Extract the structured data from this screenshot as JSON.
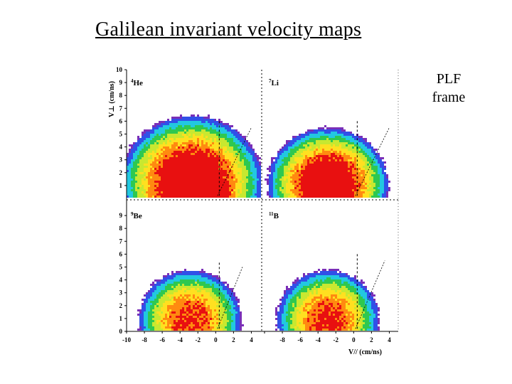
{
  "slide": {
    "title": "Galilean invariant velocity maps",
    "note": "PLF frame"
  },
  "chart_data": {
    "type": "heatmap",
    "xlabel": "V// (cm/ns)",
    "ylabel": "V⊥ (cm/ns)",
    "x_ticks": [
      -10,
      -8,
      -6,
      -4,
      -2,
      0,
      2,
      4
    ],
    "y_ticks_top": [
      1,
      2,
      3,
      4,
      5,
      6,
      7,
      8,
      9,
      10
    ],
    "y_ticks_bottom": [
      0,
      1,
      2,
      3,
      4,
      5,
      6,
      7,
      8,
      9
    ],
    "xlim": [
      -10,
      5
    ],
    "ylim": [
      0,
      10
    ],
    "colormap": [
      "#ffffff",
      "#7a2fb8",
      "#3050e8",
      "#22c8e0",
      "#2ec850",
      "#c8e830",
      "#ffe020",
      "#ff8a10",
      "#e81010"
    ],
    "panels": [
      {
        "label_mass": "4",
        "label_element": "He",
        "clouds": [
          {
            "cx": -2.8,
            "cy": 1.3,
            "rx": 6.6,
            "ry": 4.3,
            "peak": 1.0
          },
          {
            "cx": 0.2,
            "cy": 0.8,
            "rx": 2.4,
            "ry": 1.8,
            "peak": 0.95
          },
          {
            "cx": -6.2,
            "cy": 2.5,
            "rx": 1.4,
            "ry": 2.4,
            "peak": 0.7
          }
        ],
        "guides": [
          {
            "x": 0.4,
            "x1": 4.0,
            "y0": 0.2,
            "y1": 6.0
          }
        ]
      },
      {
        "label_mass": "7",
        "label_element": "Li",
        "clouds": [
          {
            "cx": -3.0,
            "cy": 1.2,
            "rx": 5.6,
            "ry": 3.6,
            "peak": 0.98
          }
        ],
        "guides": [
          {
            "x": 0.4,
            "x1": 4.0,
            "y0": 0.2,
            "y1": 6.0
          }
        ]
      },
      {
        "label_mass": "9",
        "label_element": "Be",
        "clouds": [
          {
            "cx": -3.0,
            "cy": 1.0,
            "rx": 4.8,
            "ry": 3.2,
            "peak": 0.82
          }
        ],
        "guides": [
          {
            "x": 0.4,
            "x1": 3.0,
            "y0": 0.2,
            "y1": 5.5
          }
        ]
      },
      {
        "label_mass": "11",
        "label_element": "B",
        "clouds": [
          {
            "cx": -3.0,
            "cy": 1.0,
            "rx": 4.8,
            "ry": 3.2,
            "peak": 0.82
          }
        ],
        "guides": [
          {
            "x": 0.4,
            "x1": 3.5,
            "y0": 0.2,
            "y1": 6.0
          }
        ]
      }
    ]
  }
}
